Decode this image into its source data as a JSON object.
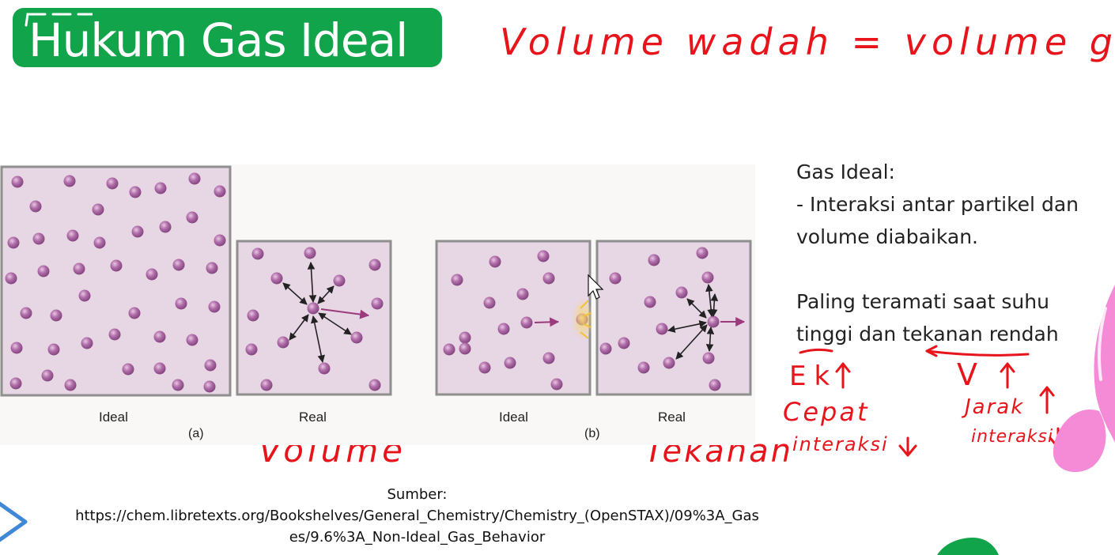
{
  "slide": {
    "title": "Hukum Gas Ideal",
    "handwritten": {
      "header": "Volume wadah = volume gas",
      "under_a": "Volume",
      "under_b": "Tekanan",
      "ek": "Ek",
      "cepat": "Cepat",
      "interaksi_left": "interaksi",
      "v": "V",
      "jarak": "Jarak",
      "interaksi_right": "interaksi"
    }
  },
  "figure": {
    "panel_a": {
      "left_label": "Ideal",
      "right_label": "Real",
      "tag": "(a)"
    },
    "panel_b": {
      "left_label": "Ideal",
      "right_label": "Real",
      "tag": "(b)"
    }
  },
  "notes": {
    "heading": "Gas Ideal:",
    "point1_line1": "- Interaksi antar partikel dan",
    "point1_line2": "volume diabaikan.",
    "point2_line1": "Paling teramati saat suhu",
    "point2_line2": "tinggi dan tekanan rendah"
  },
  "source": {
    "label": "Sumber:",
    "line1": "https://chem.libretexts.org/Bookshelves/General_Chemistry/Chemistry_(OpenSTAX)/09%3A_Gas",
    "line2": "es/9.6%3A_Non-Ideal_Gas_Behavior"
  },
  "colors": {
    "title_bg": "#12a44a",
    "ink": "#e8141b",
    "box_fill": "#e7d6e3",
    "box_border": "#8f8f8f",
    "particle": "#a15e9a",
    "force_arrow": "#9b3a7c",
    "collision": "#f2c230",
    "deco_pink": "#f58ad6",
    "deco_blue": "#3f88d6",
    "deco_green": "#12a44a"
  }
}
